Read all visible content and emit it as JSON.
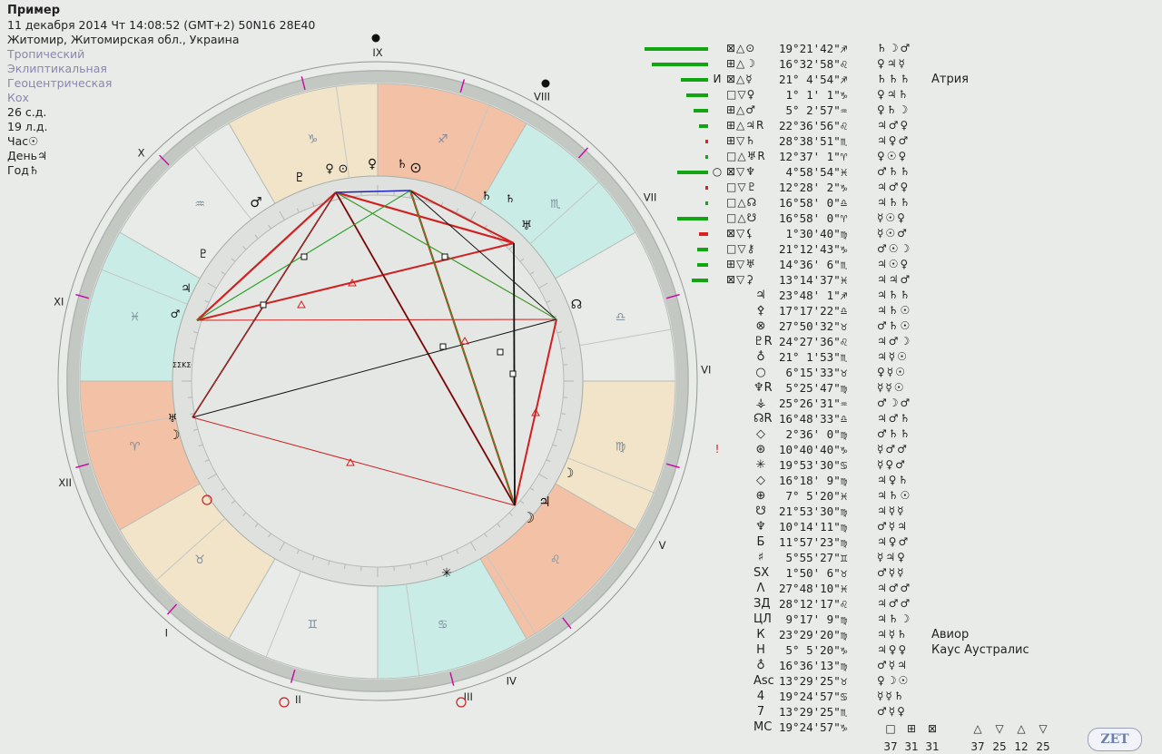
{
  "header": {
    "title": "Пример",
    "datetime": "11 декабря 2014  Чт  14:08:52 (GMT+2) 50N16  28E40",
    "place": "Житомир, Житомирская обл., Украина",
    "settings": [
      "Тропический",
      "Эклиптикальная",
      "Геоцентрическая",
      "Кох"
    ],
    "stats": [
      "26 с.д.",
      "19 л.д.",
      "Час☉",
      "День♃",
      "Год♄"
    ]
  },
  "houses": [
    "IX",
    "VIII",
    "VII",
    "VI",
    "V",
    "IV",
    "III",
    "II",
    "I",
    "XII",
    "XI",
    "X"
  ],
  "signs": [
    "♐",
    "♏",
    "♎",
    "♍",
    "♌",
    "♋",
    "♊",
    "♉",
    "♈",
    "♓",
    "♒",
    "♑"
  ],
  "cusp_labels": [
    "ΣΣΚΣ"
  ],
  "planet_labels": {
    "neptune_pluto_top": "♇",
    "venus": "♀",
    "sun": "⊙",
    "saturn": "♄",
    "mars": "♂",
    "uranus": "♅",
    "moon": "☽",
    "jupiter": "♃",
    "north_node": "☊",
    "retro": "R"
  },
  "rows": [
    {
      "bar": 70,
      "mk": "",
      "asp": "⊠△⊙",
      "pos": "19°21'42\"♐",
      "rul": "♄☽♂",
      "star": ""
    },
    {
      "bar": 62,
      "mk": "",
      "asp": "⊞△☽",
      "pos": "16°32'58\"♌",
      "rul": "♀♃☿",
      "star": ""
    },
    {
      "bar": 30,
      "mk": "И",
      "asp": "⊠△☿",
      "pos": "21° 4'54\"♐",
      "rul": "♄♄♄",
      "star": "Атрия"
    },
    {
      "bar": 24,
      "mk": "",
      "asp": "□▽♀",
      "pos": " 1° 1' 1\"♑",
      "rul": "♀♃♄",
      "star": ""
    },
    {
      "bar": 16,
      "mk": "",
      "asp": "⊞△♂",
      "pos": " 5° 2'57\"♒",
      "rul": "♀♄☽",
      "star": ""
    },
    {
      "bar": 10,
      "mk": "",
      "asp": "⊞△♃R",
      "pos": "22°36'56\"♌",
      "rul": "♃♂♀",
      "star": ""
    },
    {
      "bar": 3,
      "mk": "",
      "asp": "⊞▽♄",
      "pos": "28°38'51\"♏",
      "rul": "♃♀♂",
      "star": "",
      "red": true
    },
    {
      "bar": 3,
      "mk": "",
      "asp": "□△♅R",
      "pos": "12°37' 1\"♈",
      "rul": "♀☉♀",
      "star": ""
    },
    {
      "bar": 34,
      "mk": "○",
      "asp": "⊠▽♆",
      "pos": " 4°58'54\"♓",
      "rul": "♂♄♄",
      "star": ""
    },
    {
      "bar": 3,
      "mk": "",
      "asp": "□▽♇",
      "pos": "12°28' 2\"♑",
      "rul": "♃♂♀",
      "star": "",
      "red": true
    },
    {
      "bar": 3,
      "mk": "",
      "asp": "□△☊",
      "pos": "16°58' 0\"♎",
      "rul": "♃♄♄",
      "star": ""
    },
    {
      "bar": 34,
      "mk": "",
      "asp": "□△☋",
      "pos": "16°58' 0\"♈",
      "rul": "☿☉♀",
      "star": ""
    },
    {
      "bar": 10,
      "mk": "",
      "asp": "⊠▽⚸",
      "pos": " 1°30'40\"♍",
      "rul": "☿☉♂",
      "star": "",
      "red": true
    },
    {
      "bar": 12,
      "mk": "",
      "asp": "□▽⚷",
      "pos": "21°12'43\"♑",
      "rul": "♂☉☽",
      "star": ""
    },
    {
      "bar": 12,
      "mk": "",
      "asp": "⊞▽♅",
      "pos": "14°36' 6\"♏",
      "rul": "♃☉♀",
      "star": ""
    },
    {
      "bar": 18,
      "mk": "",
      "asp": "⊠▽⚳",
      "pos": "13°14'37\"♓",
      "rul": "♃♃♂",
      "star": ""
    },
    {
      "bar": 0,
      "mk": "",
      "asp": "",
      "pl": "♃",
      "pos": "23°48' 1\"♐",
      "rul": "♃♄♄",
      "star": ""
    },
    {
      "bar": 0,
      "mk": "",
      "asp": "",
      "pl": "⚴",
      "pos": "17°17'22\"♎",
      "rul": "♃♄☉",
      "star": ""
    },
    {
      "bar": 0,
      "mk": "",
      "asp": "",
      "pl": "⊗",
      "pos": "27°50'32\"♉",
      "rul": "♂♄☉",
      "star": ""
    },
    {
      "bar": 0,
      "mk": "",
      "asp": "",
      "pl": "♇R",
      "pos": "24°27'36\"♌",
      "rul": "♃♂☽",
      "star": ""
    },
    {
      "bar": 0,
      "mk": "",
      "asp": "",
      "pl": "♁",
      "pos": "21° 1'53\"♏",
      "rul": "♃☿☉",
      "star": ""
    },
    {
      "bar": 0,
      "mk": "",
      "asp": "",
      "pl": "○",
      "pos": " 6°15'33\"♉",
      "rul": "♀☿☉",
      "star": ""
    },
    {
      "bar": 0,
      "mk": "",
      "asp": "",
      "pl": "♆R",
      "pos": " 5°25'47\"♍",
      "rul": "☿☿☉",
      "star": ""
    },
    {
      "bar": 0,
      "mk": "",
      "asp": "",
      "pl": "⚶",
      "pos": "25°26'31\"♒",
      "rul": "♂☽♂",
      "star": ""
    },
    {
      "bar": 0,
      "mk": "",
      "asp": "",
      "pl": "☊R",
      "pos": "16°48'33\"♎",
      "rul": "♃♂♄",
      "star": ""
    },
    {
      "bar": 0,
      "mk": "",
      "asp": "",
      "pl": "◇",
      "pos": " 2°36' 0\"♍",
      "rul": "♂♄♄",
      "star": ""
    },
    {
      "bar": 0,
      "mk": "!",
      "asp": "",
      "pl": "⊛",
      "pos": "10°40'40\"♑",
      "rul": "☿♂♂",
      "star": ""
    },
    {
      "bar": 0,
      "mk": "",
      "asp": "",
      "pl": "✳",
      "pos": "19°53'30\"♋",
      "rul": "☿♀♂",
      "star": ""
    },
    {
      "bar": 0,
      "mk": "",
      "asp": "",
      "pl": "◇",
      "pos": "16°18' 9\"♍",
      "rul": "♃♀♄",
      "star": ""
    },
    {
      "bar": 0,
      "mk": "",
      "asp": "",
      "pl": "⊕",
      "pos": " 7° 5'20\"♓",
      "rul": "♃♄☉",
      "star": ""
    },
    {
      "bar": 0,
      "mk": "",
      "asp": "",
      "pl": "☋",
      "pos": "21°53'30\"♍",
      "rul": "♃☿☿",
      "star": ""
    },
    {
      "bar": 0,
      "mk": "",
      "asp": "",
      "pl": "♆",
      "pos": "10°14'11\"♍",
      "rul": "♂☿♃",
      "star": ""
    },
    {
      "bar": 0,
      "mk": "",
      "asp": "",
      "pl": "Б",
      "pos": "11°57'23\"♍",
      "rul": "♃♀♂",
      "star": ""
    },
    {
      "bar": 0,
      "mk": "",
      "asp": "",
      "pl": "♯",
      "pos": " 5°55'27\"♊",
      "rul": "☿♃♀",
      "star": ""
    },
    {
      "bar": 0,
      "mk": "",
      "asp": "",
      "pl": "SX",
      "pos": " 1°50' 6\"♉",
      "rul": "♂☿☿",
      "star": ""
    },
    {
      "bar": 0,
      "mk": "",
      "asp": "",
      "pl": "Λ",
      "pos": "27°48'10\"♓",
      "rul": "♃♂♂",
      "star": ""
    },
    {
      "bar": 0,
      "mk": "",
      "asp": "",
      "pl": "ЗД",
      "pos": "28°12'17\"♌",
      "rul": "♃♂♂",
      "star": ""
    },
    {
      "bar": 0,
      "mk": "",
      "asp": "",
      "pl": "ЦЛ",
      "pos": " 9°17' 9\"♍",
      "rul": "♃♄☽",
      "star": ""
    },
    {
      "bar": 0,
      "mk": "",
      "asp": "",
      "pl": "К",
      "pos": "23°29'20\"♍",
      "rul": "♃☿♄",
      "star": "Авиор"
    },
    {
      "bar": 0,
      "mk": "",
      "asp": "",
      "pl": "Н",
      "pos": " 5° 5'20\"♑",
      "rul": "♃♀♀",
      "star": "Каус Аустралис"
    },
    {
      "bar": 0,
      "mk": "",
      "asp": "",
      "pl": "♁",
      "pos": "16°36'13\"♍",
      "rul": "♂☿♃",
      "star": ""
    },
    {
      "bar": 0,
      "mk": "",
      "asp": "",
      "pl": "Asc",
      "pos": "13°29'25\"♉",
      "rul": "♀☽☉",
      "star": ""
    },
    {
      "bar": 0,
      "mk": "",
      "asp": "",
      "pl": "4",
      "pos": "19°24'57\"♋",
      "rul": "☿☿♄",
      "star": ""
    },
    {
      "bar": 0,
      "mk": "",
      "asp": "",
      "pl": "7",
      "pos": "13°29'25\"♏",
      "rul": "♂☿♀",
      "star": ""
    },
    {
      "bar": 0,
      "mk": "",
      "asp": "",
      "pl": "MC",
      "pos": "19°24'57\"♑",
      "rul": "",
      "star": ""
    }
  ],
  "totals_symbols": [
    "□",
    "⊞",
    "⊠",
    "△",
    "▽",
    "△",
    "▽"
  ],
  "totals_values": [
    "37",
    "31",
    "31",
    "37",
    "25",
    "12",
    "25"
  ],
  "zet_label": "ZET"
}
